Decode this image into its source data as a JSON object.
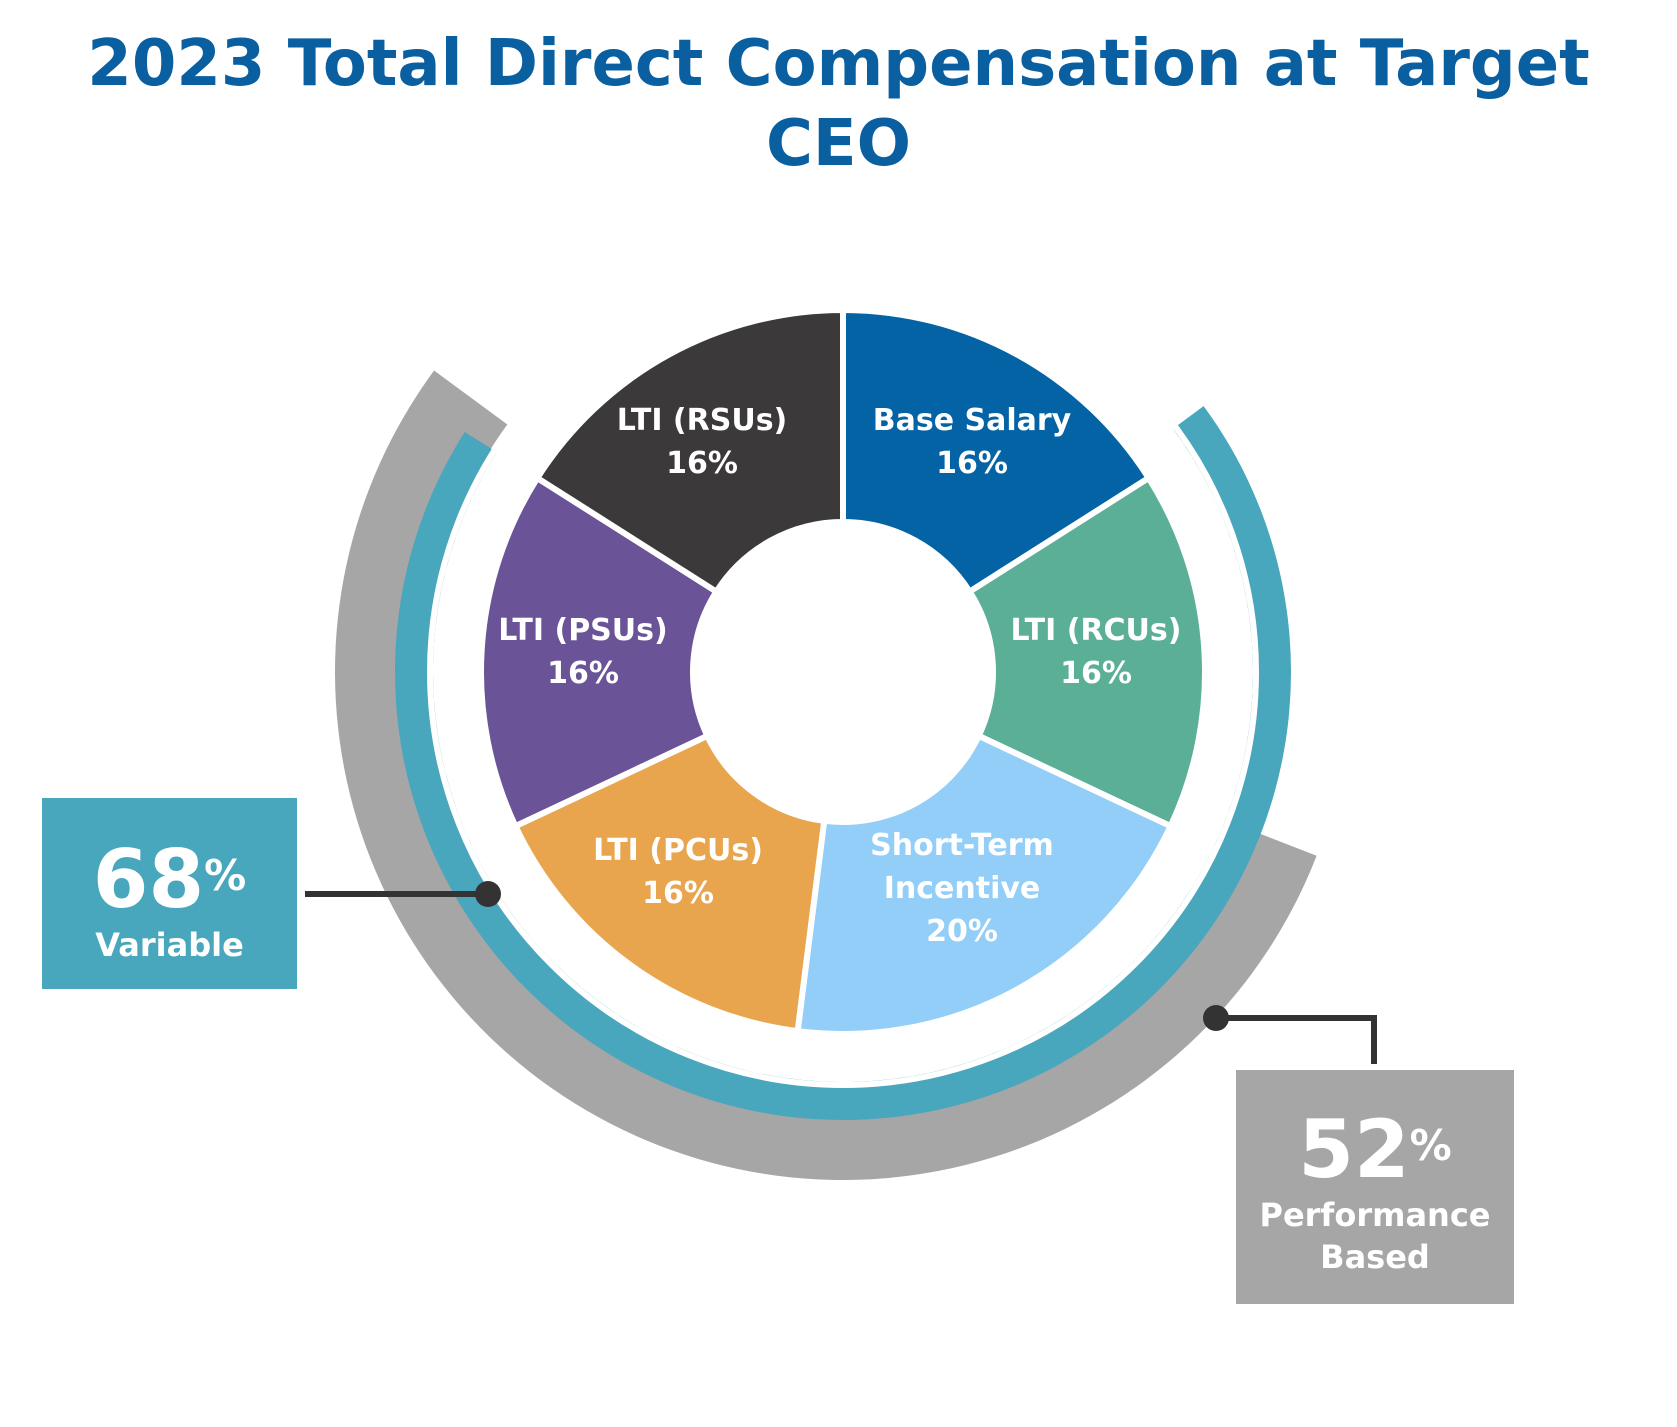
{
  "title_line1": "2023 Total Direct Compensation at Target",
  "title_line2": "CEO",
  "chart_data": {
    "type": "pie",
    "title": "2023 Total Direct Compensation at Target CEO",
    "slices": [
      {
        "label": "Base Salary",
        "value": 16,
        "value_text": "16%",
        "color": "#0463a4"
      },
      {
        "label": "LTI (RCUs)",
        "value": 16,
        "value_text": "16%",
        "color": "#5baf96"
      },
      {
        "label": "Short-Term Incentive",
        "value": 20,
        "value_text": "20%",
        "color": "#92cef7"
      },
      {
        "label": "LTI (PCUs)",
        "value": 16,
        "value_text": "16%",
        "color": "#e8a54e"
      },
      {
        "label": "LTI (PSUs)",
        "value": 16,
        "value_text": "16%",
        "color": "#6a5396"
      },
      {
        "label": "LTI (RSUs)",
        "value": 16,
        "value_text": "16%",
        "color": "#3c393a"
      }
    ],
    "rings": [
      {
        "name": "Variable",
        "value": 68,
        "color": "#48a6bd"
      },
      {
        "name": "Performance Based",
        "value": 52,
        "color": "#a6a6a6"
      }
    ]
  },
  "callouts": {
    "variable": {
      "value": "68",
      "unit": "%",
      "label": "Variable",
      "color": "#48a6bd"
    },
    "performance": {
      "value": "52",
      "unit": "%",
      "label_line1": "Performance",
      "label_line2": "Based",
      "color": "#a6a6a6"
    }
  }
}
